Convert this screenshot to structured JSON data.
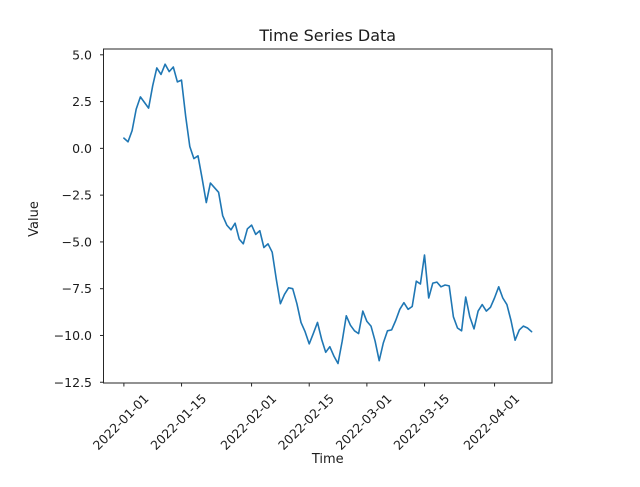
{
  "figure": {
    "background": "#ffffff"
  },
  "chart_data": {
    "type": "line",
    "title": "Time Series Data",
    "xlabel": "Time",
    "ylabel": "Value",
    "series_color": "#1f77b4",
    "grid": false,
    "legend": null,
    "x_unit": "day index from 2022-01-01 (daily points)",
    "x_range_dates": [
      "2022-01-01",
      "2022-04-10"
    ],
    "xlim": [
      -4.95,
      103.95
    ],
    "ylim": [
      -12.54,
      5.31
    ],
    "x_ticks": [
      {
        "day": 0,
        "label": "2022-01-01"
      },
      {
        "day": 14,
        "label": "2022-01-15"
      },
      {
        "day": 31,
        "label": "2022-02-01"
      },
      {
        "day": 45,
        "label": "2022-02-15"
      },
      {
        "day": 59,
        "label": "2022-03-01"
      },
      {
        "day": 73,
        "label": "2022-03-15"
      },
      {
        "day": 90,
        "label": "2022-04-01"
      }
    ],
    "y_ticks": [
      {
        "value": 5.0,
        "label": "5.0"
      },
      {
        "value": 2.5,
        "label": "2.5"
      },
      {
        "value": 0.0,
        "label": "0.0"
      },
      {
        "value": -2.5,
        "label": "−2.5"
      },
      {
        "value": -5.0,
        "label": "−5.0"
      },
      {
        "value": -7.5,
        "label": "−7.5"
      },
      {
        "value": -10.0,
        "label": "−10.0"
      },
      {
        "value": -12.5,
        "label": "−12.5"
      }
    ],
    "values": [
      0.55,
      0.35,
      0.95,
      2.1,
      2.75,
      2.45,
      2.15,
      3.35,
      4.3,
      3.95,
      4.5,
      4.1,
      4.35,
      3.55,
      3.65,
      1.7,
      0.1,
      -0.55,
      -0.4,
      -1.6,
      -2.9,
      -1.85,
      -2.1,
      -2.35,
      -3.6,
      -4.1,
      -4.35,
      -4.0,
      -4.85,
      -5.1,
      -4.3,
      -4.1,
      -4.6,
      -4.4,
      -5.3,
      -5.1,
      -5.55,
      -7.0,
      -8.3,
      -7.8,
      -7.45,
      -7.5,
      -8.3,
      -9.3,
      -9.8,
      -10.45,
      -9.9,
      -9.3,
      -10.2,
      -10.9,
      -10.6,
      -11.1,
      -11.5,
      -10.3,
      -8.95,
      -9.45,
      -9.75,
      -9.9,
      -8.7,
      -9.25,
      -9.5,
      -10.3,
      -11.35,
      -10.4,
      -9.75,
      -9.7,
      -9.2,
      -8.6,
      -8.25,
      -8.6,
      -8.45,
      -7.1,
      -7.25,
      -5.7,
      -8.0,
      -7.2,
      -7.15,
      -7.4,
      -7.3,
      -7.35,
      -9.0,
      -9.6,
      -9.75,
      -7.95,
      -9.0,
      -9.65,
      -8.7,
      -8.35,
      -8.7,
      -8.5,
      -8.0,
      -7.4,
      -8.0,
      -8.35,
      -9.2,
      -10.25,
      -9.7,
      -9.5,
      -9.6,
      -9.8
    ]
  }
}
